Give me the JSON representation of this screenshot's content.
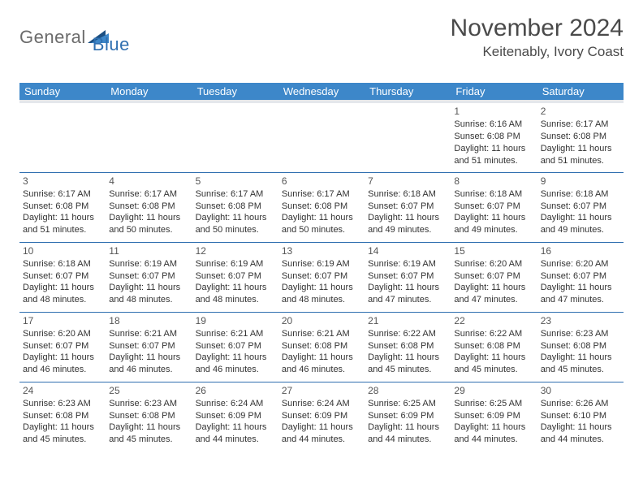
{
  "logo": {
    "text_general": "General",
    "text_blue": "Blue",
    "mark_color_dark": "#1b4f82",
    "mark_color_light": "#3d87c9"
  },
  "header": {
    "month_title": "November 2024",
    "location": "Keitenably, Ivory Coast"
  },
  "colors": {
    "header_bg": "#3d87c9",
    "header_text": "#ffffff",
    "row_border": "#2f6fb0",
    "subheader_bg": "#e4e7eb",
    "body_text": "#333333"
  },
  "weekdays": [
    "Sunday",
    "Monday",
    "Tuesday",
    "Wednesday",
    "Thursday",
    "Friday",
    "Saturday"
  ],
  "weeks": [
    [
      {
        "day": "",
        "lines": []
      },
      {
        "day": "",
        "lines": []
      },
      {
        "day": "",
        "lines": []
      },
      {
        "day": "",
        "lines": []
      },
      {
        "day": "",
        "lines": []
      },
      {
        "day": "1",
        "lines": [
          "Sunrise: 6:16 AM",
          "Sunset: 6:08 PM",
          "Daylight: 11 hours and 51 minutes."
        ]
      },
      {
        "day": "2",
        "lines": [
          "Sunrise: 6:17 AM",
          "Sunset: 6:08 PM",
          "Daylight: 11 hours and 51 minutes."
        ]
      }
    ],
    [
      {
        "day": "3",
        "lines": [
          "Sunrise: 6:17 AM",
          "Sunset: 6:08 PM",
          "Daylight: 11 hours and 51 minutes."
        ]
      },
      {
        "day": "4",
        "lines": [
          "Sunrise: 6:17 AM",
          "Sunset: 6:08 PM",
          "Daylight: 11 hours and 50 minutes."
        ]
      },
      {
        "day": "5",
        "lines": [
          "Sunrise: 6:17 AM",
          "Sunset: 6:08 PM",
          "Daylight: 11 hours and 50 minutes."
        ]
      },
      {
        "day": "6",
        "lines": [
          "Sunrise: 6:17 AM",
          "Sunset: 6:08 PM",
          "Daylight: 11 hours and 50 minutes."
        ]
      },
      {
        "day": "7",
        "lines": [
          "Sunrise: 6:18 AM",
          "Sunset: 6:07 PM",
          "Daylight: 11 hours and 49 minutes."
        ]
      },
      {
        "day": "8",
        "lines": [
          "Sunrise: 6:18 AM",
          "Sunset: 6:07 PM",
          "Daylight: 11 hours and 49 minutes."
        ]
      },
      {
        "day": "9",
        "lines": [
          "Sunrise: 6:18 AM",
          "Sunset: 6:07 PM",
          "Daylight: 11 hours and 49 minutes."
        ]
      }
    ],
    [
      {
        "day": "10",
        "lines": [
          "Sunrise: 6:18 AM",
          "Sunset: 6:07 PM",
          "Daylight: 11 hours and 48 minutes."
        ]
      },
      {
        "day": "11",
        "lines": [
          "Sunrise: 6:19 AM",
          "Sunset: 6:07 PM",
          "Daylight: 11 hours and 48 minutes."
        ]
      },
      {
        "day": "12",
        "lines": [
          "Sunrise: 6:19 AM",
          "Sunset: 6:07 PM",
          "Daylight: 11 hours and 48 minutes."
        ]
      },
      {
        "day": "13",
        "lines": [
          "Sunrise: 6:19 AM",
          "Sunset: 6:07 PM",
          "Daylight: 11 hours and 48 minutes."
        ]
      },
      {
        "day": "14",
        "lines": [
          "Sunrise: 6:19 AM",
          "Sunset: 6:07 PM",
          "Daylight: 11 hours and 47 minutes."
        ]
      },
      {
        "day": "15",
        "lines": [
          "Sunrise: 6:20 AM",
          "Sunset: 6:07 PM",
          "Daylight: 11 hours and 47 minutes."
        ]
      },
      {
        "day": "16",
        "lines": [
          "Sunrise: 6:20 AM",
          "Sunset: 6:07 PM",
          "Daylight: 11 hours and 47 minutes."
        ]
      }
    ],
    [
      {
        "day": "17",
        "lines": [
          "Sunrise: 6:20 AM",
          "Sunset: 6:07 PM",
          "Daylight: 11 hours and 46 minutes."
        ]
      },
      {
        "day": "18",
        "lines": [
          "Sunrise: 6:21 AM",
          "Sunset: 6:07 PM",
          "Daylight: 11 hours and 46 minutes."
        ]
      },
      {
        "day": "19",
        "lines": [
          "Sunrise: 6:21 AM",
          "Sunset: 6:07 PM",
          "Daylight: 11 hours and 46 minutes."
        ]
      },
      {
        "day": "20",
        "lines": [
          "Sunrise: 6:21 AM",
          "Sunset: 6:08 PM",
          "Daylight: 11 hours and 46 minutes."
        ]
      },
      {
        "day": "21",
        "lines": [
          "Sunrise: 6:22 AM",
          "Sunset: 6:08 PM",
          "Daylight: 11 hours and 45 minutes."
        ]
      },
      {
        "day": "22",
        "lines": [
          "Sunrise: 6:22 AM",
          "Sunset: 6:08 PM",
          "Daylight: 11 hours and 45 minutes."
        ]
      },
      {
        "day": "23",
        "lines": [
          "Sunrise: 6:23 AM",
          "Sunset: 6:08 PM",
          "Daylight: 11 hours and 45 minutes."
        ]
      }
    ],
    [
      {
        "day": "24",
        "lines": [
          "Sunrise: 6:23 AM",
          "Sunset: 6:08 PM",
          "Daylight: 11 hours and 45 minutes."
        ]
      },
      {
        "day": "25",
        "lines": [
          "Sunrise: 6:23 AM",
          "Sunset: 6:08 PM",
          "Daylight: 11 hours and 45 minutes."
        ]
      },
      {
        "day": "26",
        "lines": [
          "Sunrise: 6:24 AM",
          "Sunset: 6:09 PM",
          "Daylight: 11 hours and 44 minutes."
        ]
      },
      {
        "day": "27",
        "lines": [
          "Sunrise: 6:24 AM",
          "Sunset: 6:09 PM",
          "Daylight: 11 hours and 44 minutes."
        ]
      },
      {
        "day": "28",
        "lines": [
          "Sunrise: 6:25 AM",
          "Sunset: 6:09 PM",
          "Daylight: 11 hours and 44 minutes."
        ]
      },
      {
        "day": "29",
        "lines": [
          "Sunrise: 6:25 AM",
          "Sunset: 6:09 PM",
          "Daylight: 11 hours and 44 minutes."
        ]
      },
      {
        "day": "30",
        "lines": [
          "Sunrise: 6:26 AM",
          "Sunset: 6:10 PM",
          "Daylight: 11 hours and 44 minutes."
        ]
      }
    ]
  ]
}
